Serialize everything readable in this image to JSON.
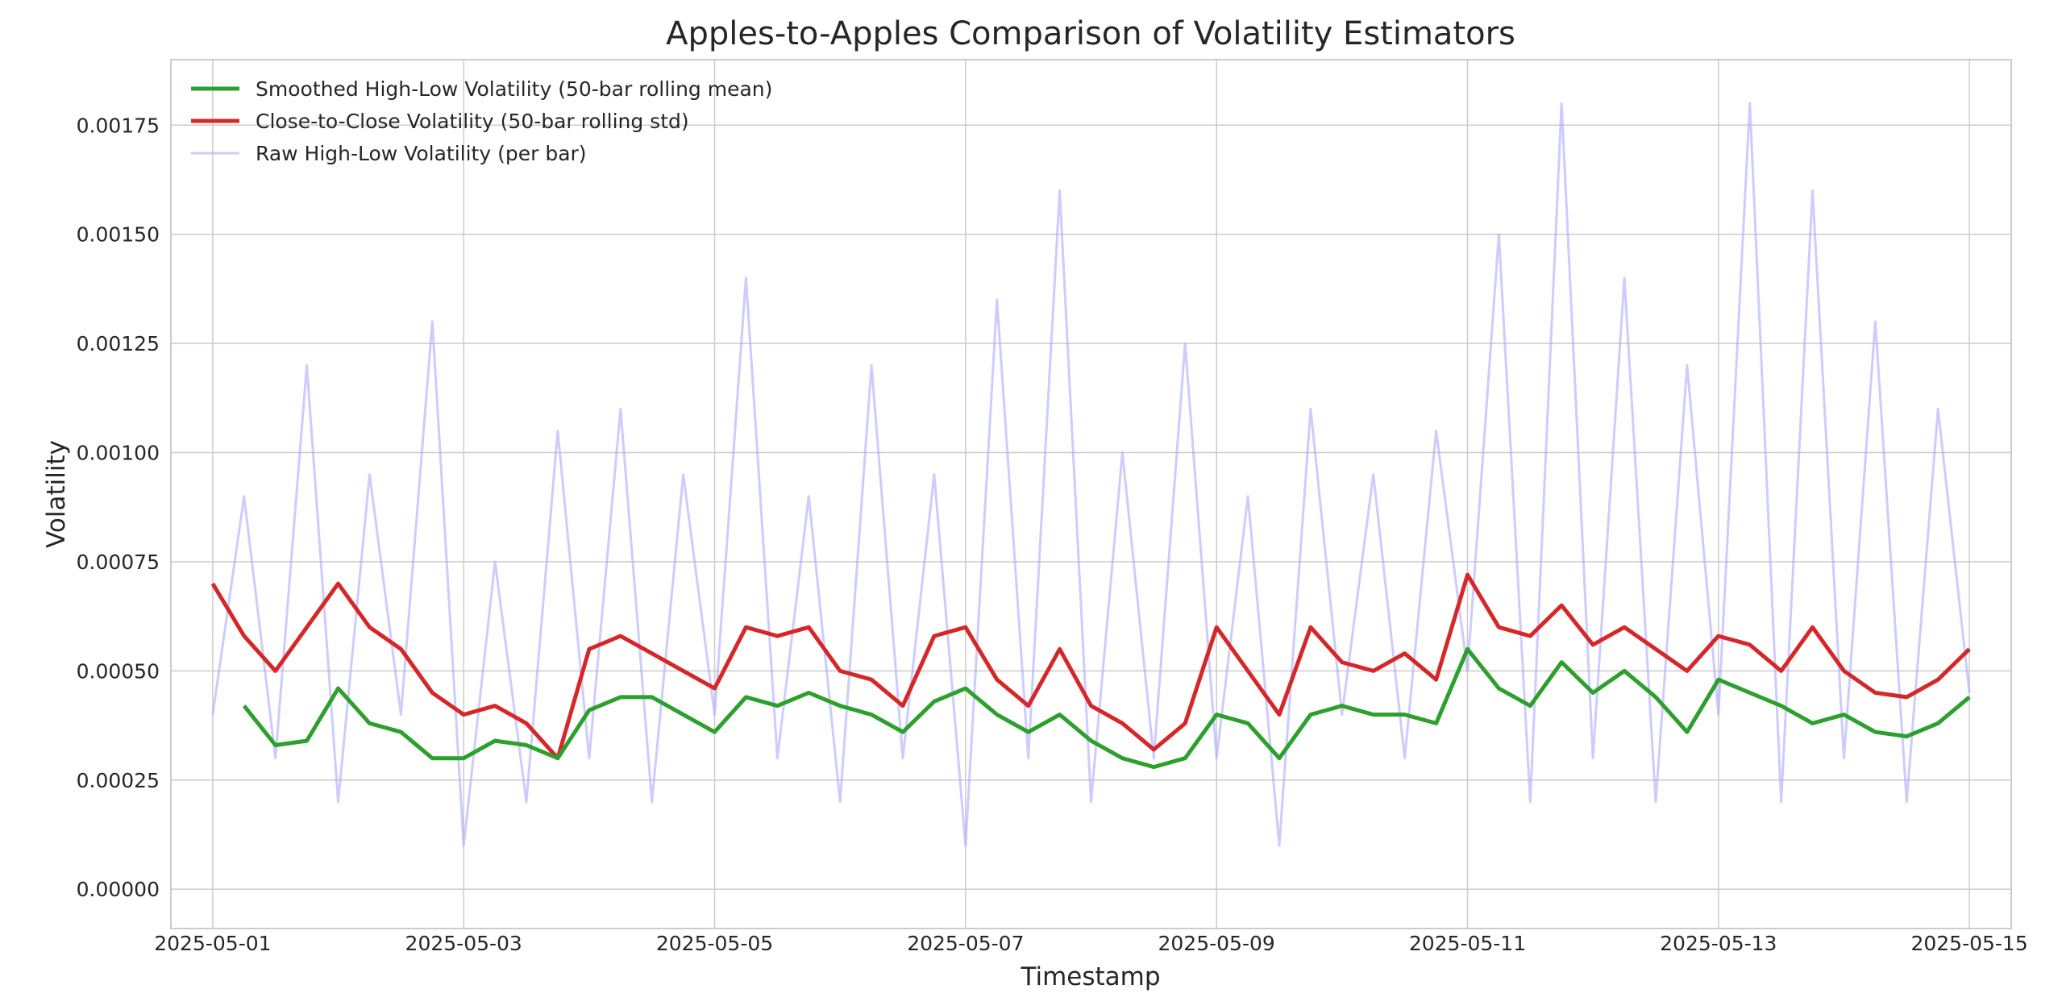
{
  "chart_data": {
    "type": "line",
    "title": "Apples-to-Apples Comparison of Volatility Estimators",
    "xlabel": "Timestamp",
    "ylabel": "Volatility",
    "x_ticks": [
      "2025-05-01",
      "2025-05-03",
      "2025-05-05",
      "2025-05-07",
      "2025-05-09",
      "2025-05-11",
      "2025-05-13",
      "2025-05-15"
    ],
    "y_ticks": [
      "0.00000",
      "0.00025",
      "0.00050",
      "0.00075",
      "0.00100",
      "0.00125",
      "0.00150",
      "0.00175"
    ],
    "xlim": [
      "2025-04-30T16:00",
      "2025-05-15T08:00"
    ],
    "ylim": [
      -9e-05,
      0.0019
    ],
    "grid": true,
    "legend_position": "top-left",
    "x": [
      "2025-05-01",
      "2025-05-01T06:00",
      "2025-05-01T12:00",
      "2025-05-01T18:00",
      "2025-05-02",
      "2025-05-02T06:00",
      "2025-05-02T12:00",
      "2025-05-02T18:00",
      "2025-05-03",
      "2025-05-03T06:00",
      "2025-05-03T12:00",
      "2025-05-03T18:00",
      "2025-05-04",
      "2025-05-04T06:00",
      "2025-05-04T12:00",
      "2025-05-04T18:00",
      "2025-05-05",
      "2025-05-05T06:00",
      "2025-05-05T12:00",
      "2025-05-05T18:00",
      "2025-05-06",
      "2025-05-06T06:00",
      "2025-05-06T12:00",
      "2025-05-06T18:00",
      "2025-05-07",
      "2025-05-07T06:00",
      "2025-05-07T12:00",
      "2025-05-07T18:00",
      "2025-05-08",
      "2025-05-08T06:00",
      "2025-05-08T12:00",
      "2025-05-08T18:00",
      "2025-05-09",
      "2025-05-09T06:00",
      "2025-05-09T12:00",
      "2025-05-09T18:00",
      "2025-05-10",
      "2025-05-10T06:00",
      "2025-05-10T12:00",
      "2025-05-10T18:00",
      "2025-05-11",
      "2025-05-11T06:00",
      "2025-05-11T12:00",
      "2025-05-11T18:00",
      "2025-05-12",
      "2025-05-12T06:00",
      "2025-05-12T12:00",
      "2025-05-12T18:00",
      "2025-05-13",
      "2025-05-13T06:00",
      "2025-05-13T12:00",
      "2025-05-13T18:00",
      "2025-05-14",
      "2025-05-14T06:00",
      "2025-05-14T12:00",
      "2025-05-14T18:00",
      "2025-05-15"
    ],
    "series": [
      {
        "name": "Smoothed High-Low Volatility (50-bar rolling mean)",
        "color": "#2ca02c",
        "values": [
          null,
          0.00042,
          0.00033,
          0.00034,
          0.00046,
          0.00038,
          0.00036,
          0.0003,
          0.0003,
          0.00034,
          0.00033,
          0.0003,
          0.00041,
          0.00044,
          0.00044,
          0.0004,
          0.00036,
          0.00044,
          0.00042,
          0.00045,
          0.00042,
          0.0004,
          0.00036,
          0.00043,
          0.00046,
          0.0004,
          0.00036,
          0.0004,
          0.00034,
          0.0003,
          0.00028,
          0.0003,
          0.0004,
          0.00038,
          0.0003,
          0.0004,
          0.00042,
          0.0004,
          0.0004,
          0.00038,
          0.00055,
          0.00046,
          0.00042,
          0.00052,
          0.00045,
          0.0005,
          0.00044,
          0.00036,
          0.00048,
          0.00045,
          0.00042,
          0.00038,
          0.0004,
          0.00036,
          0.00035,
          0.00038,
          0.00044
        ]
      },
      {
        "name": "Close-to-Close Volatility (50-bar rolling std)",
        "color": "#d62728",
        "values": [
          0.0007,
          0.00058,
          0.0005,
          0.0006,
          0.0007,
          0.0006,
          0.00055,
          0.00045,
          0.0004,
          0.00042,
          0.00038,
          0.0003,
          0.00055,
          0.00058,
          0.00054,
          0.0005,
          0.00046,
          0.0006,
          0.00058,
          0.0006,
          0.0005,
          0.00048,
          0.00042,
          0.00058,
          0.0006,
          0.00048,
          0.00042,
          0.00055,
          0.00042,
          0.00038,
          0.00032,
          0.00038,
          0.0006,
          0.0005,
          0.0004,
          0.0006,
          0.00052,
          0.0005,
          0.00054,
          0.00048,
          0.00072,
          0.0006,
          0.00058,
          0.00065,
          0.00056,
          0.0006,
          0.00055,
          0.0005,
          0.00058,
          0.00056,
          0.0005,
          0.0006,
          0.0005,
          0.00045,
          0.00044,
          0.00048,
          0.00055
        ]
      },
      {
        "name": "Raw High-Low Volatility (per bar)",
        "color": "#aaaaff",
        "values": [
          0.0004,
          0.0009,
          0.0003,
          0.0012,
          0.0002,
          0.00095,
          0.0004,
          0.0013,
          0.0001,
          0.00075,
          0.0002,
          0.00105,
          0.0003,
          0.0011,
          0.0002,
          0.00095,
          0.0004,
          0.0014,
          0.0003,
          0.0009,
          0.0002,
          0.0012,
          0.0003,
          0.00095,
          0.0001,
          0.00135,
          0.0003,
          0.0016,
          0.0002,
          0.001,
          0.0003,
          0.00125,
          0.0003,
          0.0009,
          0.0001,
          0.0011,
          0.0004,
          0.00095,
          0.0003,
          0.00105,
          0.0005,
          0.0015,
          0.0002,
          0.0018,
          0.0003,
          0.0014,
          0.0002,
          0.0012,
          0.0004,
          0.0018,
          0.0002,
          0.0016,
          0.0003,
          0.0013,
          0.0002,
          0.0011,
          0.00045
        ]
      }
    ]
  }
}
